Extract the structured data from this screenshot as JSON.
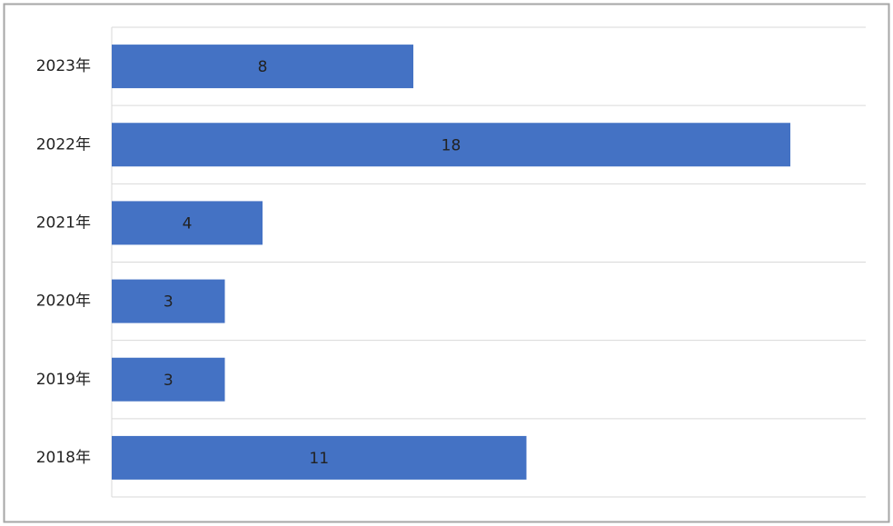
{
  "chart_data": {
    "type": "hbar",
    "categories": [
      "2023年",
      "2022年",
      "2021年",
      "2020年",
      "2019年",
      "2018年"
    ],
    "values": [
      8,
      18,
      4,
      3,
      3,
      11
    ],
    "color": "#4472c4",
    "xlim": [
      0,
      20
    ]
  }
}
